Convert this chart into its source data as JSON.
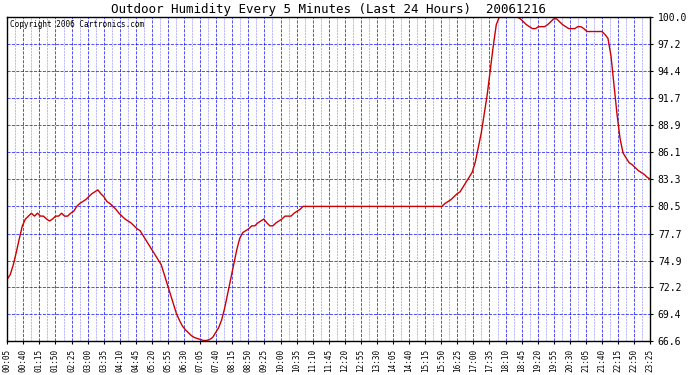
{
  "title": "Outdoor Humidity Every 5 Minutes (Last 24 Hours)  20061216",
  "copyright_text": "Copyright 2006 Cartronics.com",
  "background_color": "#ffffff",
  "plot_bg_color": "#ffffff",
  "line_color": "#cc0000",
  "grid_color": "#0000ff",
  "border_color": "#000000",
  "yticks": [
    66.6,
    69.4,
    72.2,
    74.9,
    77.7,
    80.5,
    83.3,
    86.1,
    88.9,
    91.7,
    94.4,
    97.2,
    100.0
  ],
  "ylim": [
    66.6,
    100.0
  ],
  "xtick_labels": [
    "00:05",
    "00:40",
    "01:15",
    "01:50",
    "02:25",
    "03:00",
    "03:35",
    "04:10",
    "04:45",
    "05:20",
    "05:55",
    "06:30",
    "07:05",
    "07:40",
    "08:15",
    "08:50",
    "09:25",
    "10:00",
    "10:35",
    "11:10",
    "11:45",
    "12:20",
    "12:55",
    "13:30",
    "14:05",
    "14:40",
    "15:15",
    "15:50",
    "16:25",
    "17:00",
    "17:35",
    "18:10",
    "18:45",
    "19:20",
    "19:55",
    "20:30",
    "21:05",
    "21:40",
    "22:15",
    "22:50",
    "23:25"
  ],
  "humidity_data": [
    73.0,
    73.5,
    74.5,
    75.8,
    77.2,
    78.5,
    79.2,
    79.5,
    79.8,
    79.5,
    79.8,
    79.5,
    79.5,
    79.2,
    79.0,
    79.2,
    79.5,
    79.5,
    79.8,
    79.5,
    79.5,
    79.8,
    80.0,
    80.5,
    80.8,
    81.0,
    81.2,
    81.5,
    81.8,
    82.0,
    82.2,
    81.8,
    81.5,
    81.0,
    80.8,
    80.5,
    80.2,
    79.8,
    79.5,
    79.2,
    79.0,
    78.8,
    78.5,
    78.2,
    78.0,
    77.5,
    77.0,
    76.5,
    76.0,
    75.5,
    75.0,
    74.5,
    73.5,
    72.5,
    71.5,
    70.5,
    69.5,
    68.8,
    68.2,
    67.8,
    67.5,
    67.2,
    67.0,
    66.9,
    66.8,
    66.7,
    66.7,
    66.8,
    67.0,
    67.5,
    68.0,
    68.8,
    70.0,
    71.5,
    73.0,
    74.5,
    76.0,
    77.2,
    77.8,
    78.0,
    78.2,
    78.5,
    78.5,
    78.8,
    79.0,
    79.2,
    78.8,
    78.5,
    78.5,
    78.8,
    79.0,
    79.2,
    79.5,
    79.5,
    79.5,
    79.8,
    80.0,
    80.2,
    80.5,
    80.5,
    80.5,
    80.5,
    80.5,
    80.5,
    80.5,
    80.5,
    80.5,
    80.5,
    80.5,
    80.5,
    80.5,
    80.5,
    80.5,
    80.5,
    80.5,
    80.5,
    80.5,
    80.5,
    80.5,
    80.5,
    80.5,
    80.5,
    80.5,
    80.5,
    80.5,
    80.5,
    80.5,
    80.5,
    80.5,
    80.5,
    80.5,
    80.5,
    80.5,
    80.5,
    80.5,
    80.5,
    80.5,
    80.5,
    80.5,
    80.5,
    80.5,
    80.5,
    80.5,
    80.5,
    80.5,
    80.8,
    81.0,
    81.2,
    81.5,
    81.8,
    82.0,
    82.5,
    83.0,
    83.5,
    84.0,
    85.0,
    86.5,
    88.0,
    90.0,
    92.0,
    94.5,
    97.0,
    99.2,
    100.0,
    100.0,
    100.0,
    100.0,
    100.0,
    100.0,
    100.0,
    99.8,
    99.5,
    99.2,
    99.0,
    98.8,
    98.8,
    99.0,
    99.0,
    99.0,
    99.2,
    99.5,
    99.8,
    99.8,
    99.5,
    99.2,
    99.0,
    98.8,
    98.8,
    98.8,
    99.0,
    99.0,
    98.8,
    98.5,
    98.5,
    98.5,
    98.5,
    98.5,
    98.5,
    98.2,
    97.8,
    96.0,
    93.0,
    90.0,
    87.5,
    86.0,
    85.5,
    85.0,
    84.8,
    84.5,
    84.2,
    84.0,
    83.8,
    83.5,
    83.3
  ]
}
